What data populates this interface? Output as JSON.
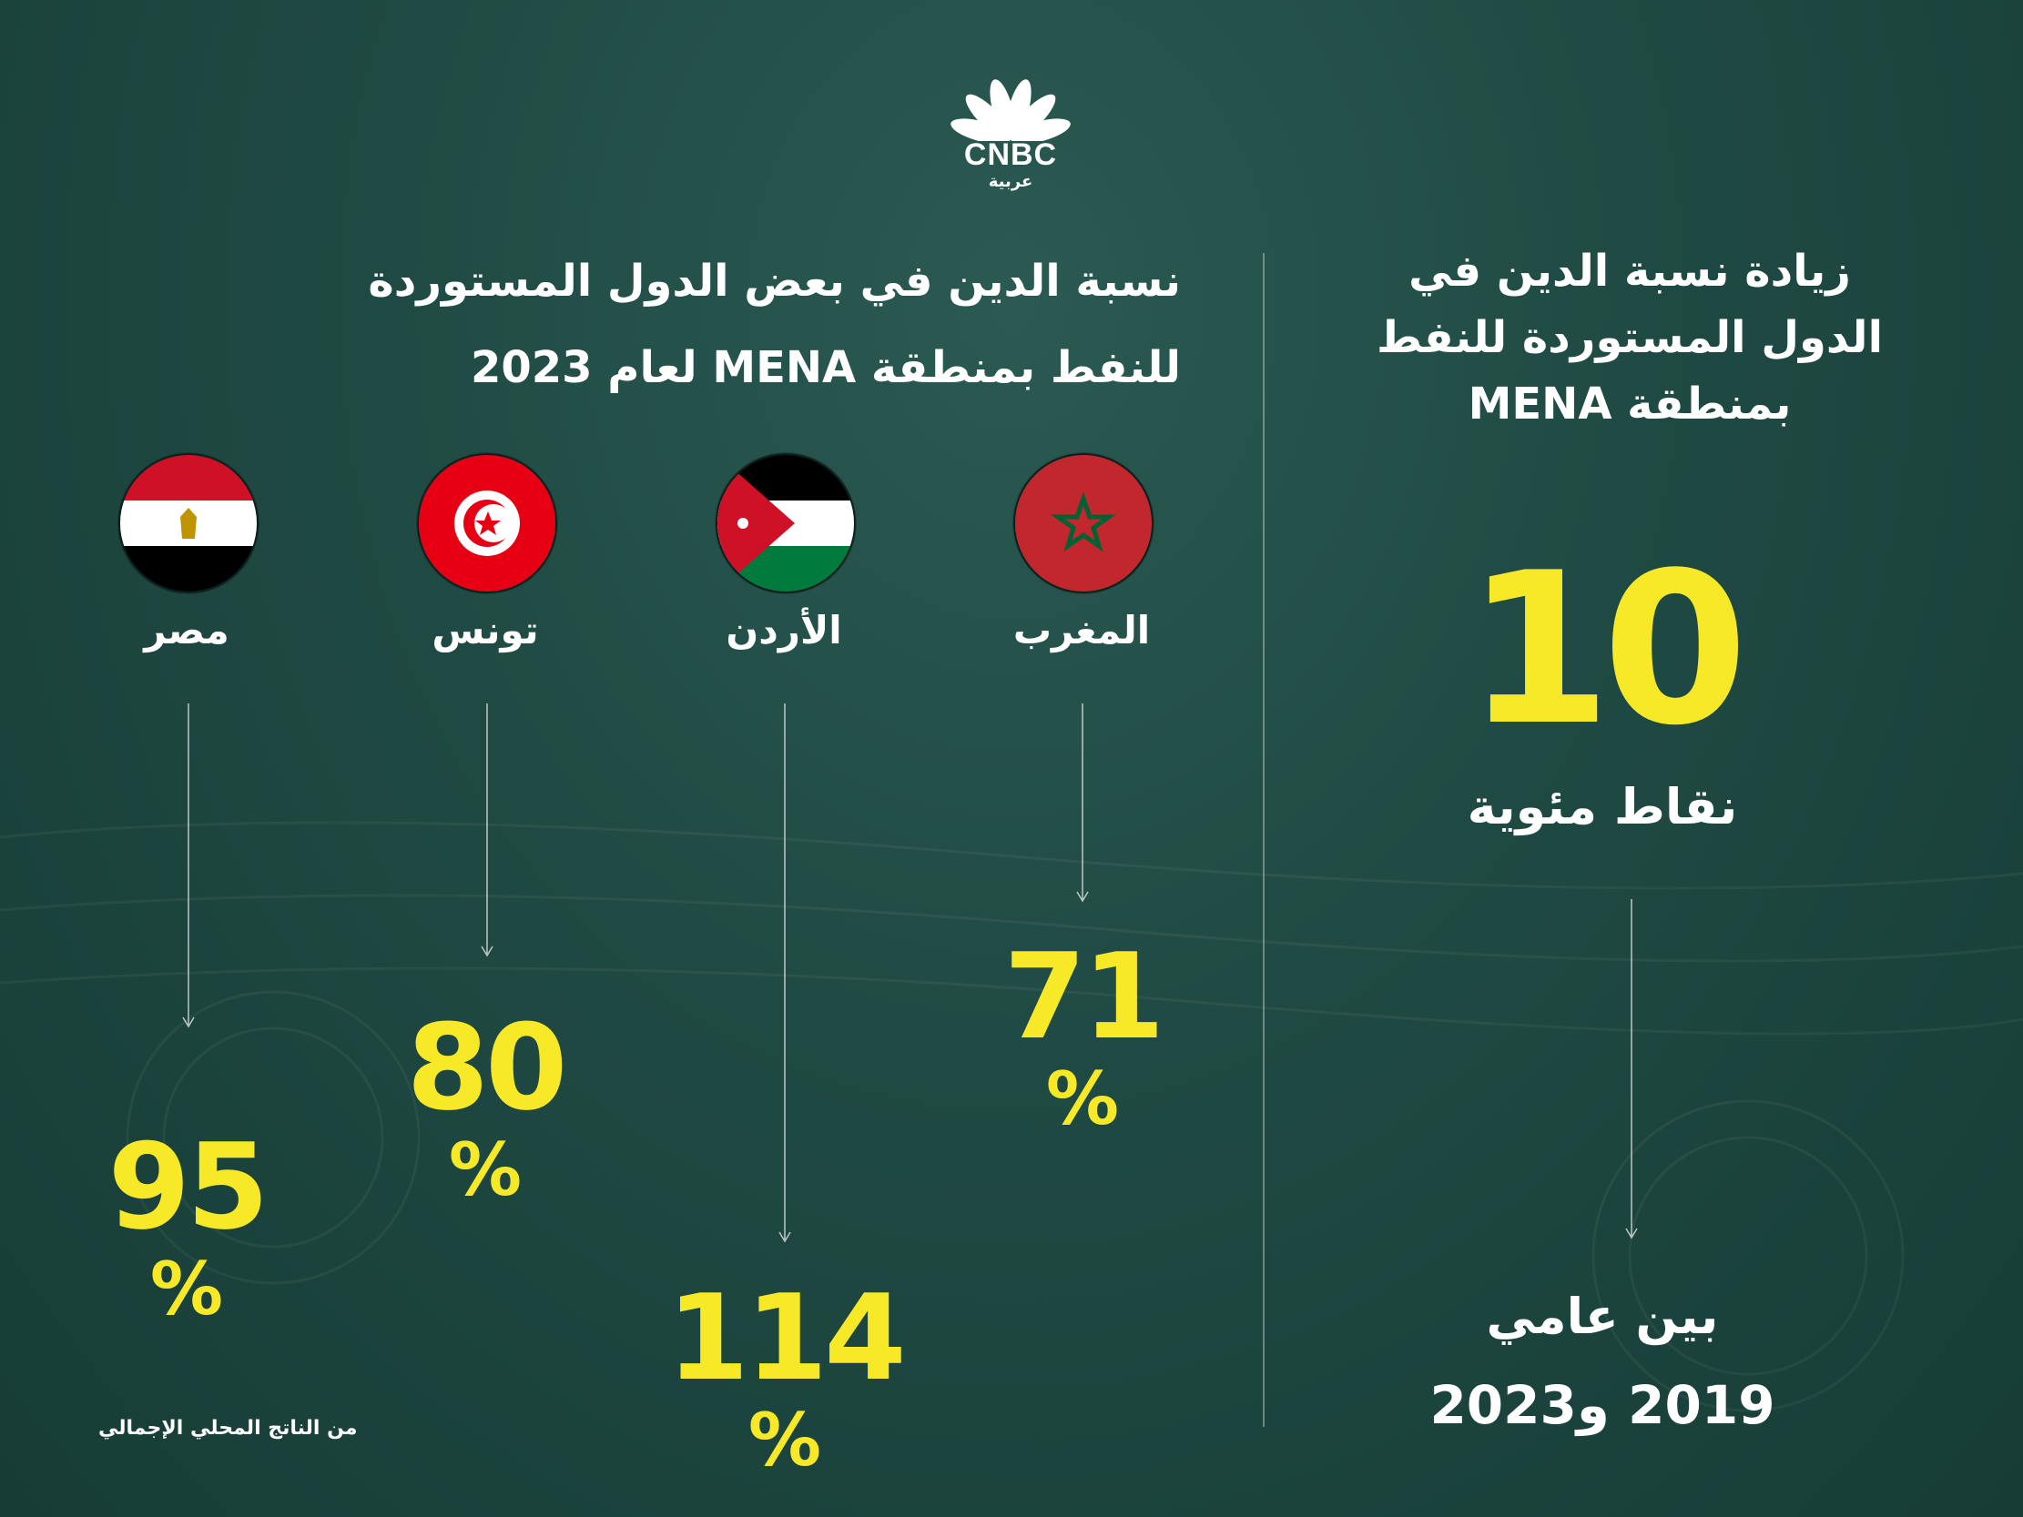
{
  "logo": {
    "brand": "CNBC",
    "sub": "عربية"
  },
  "left_title_line1": "نسبة الدين في بعض الدول المستوردة",
  "left_title_line2": "للنفط بمنطقة MENA لعام 2023",
  "right_title_line1": "زيادة نسبة الدين في",
  "right_title_line2": "الدول المستوردة للنفط",
  "right_title_line3": "بمنطقة MENA",
  "increase": {
    "value": "10",
    "unit": "نقاط مئوية",
    "between": "بين عامي",
    "years": "2019 و2023"
  },
  "source": "من الناتج المحلي الإجمالي",
  "colors": {
    "accent": "#f7e928",
    "background": "#1f4a43"
  },
  "chart_data": {
    "type": "table",
    "title": "نسبة الدين في بعض الدول المستوردة للنفط بمنطقة MENA لعام 2023",
    "categories": [
      "المغرب",
      "الأردن",
      "تونس",
      "مصر"
    ],
    "values": [
      71,
      114,
      80,
      95
    ],
    "value_labels": [
      "71",
      "114",
      "80",
      "95"
    ],
    "unit": "%",
    "flags": [
      "morocco-flag-icon",
      "jordan-flag-icon",
      "tunisia-flag-icon",
      "egypt-flag-icon"
    ]
  }
}
